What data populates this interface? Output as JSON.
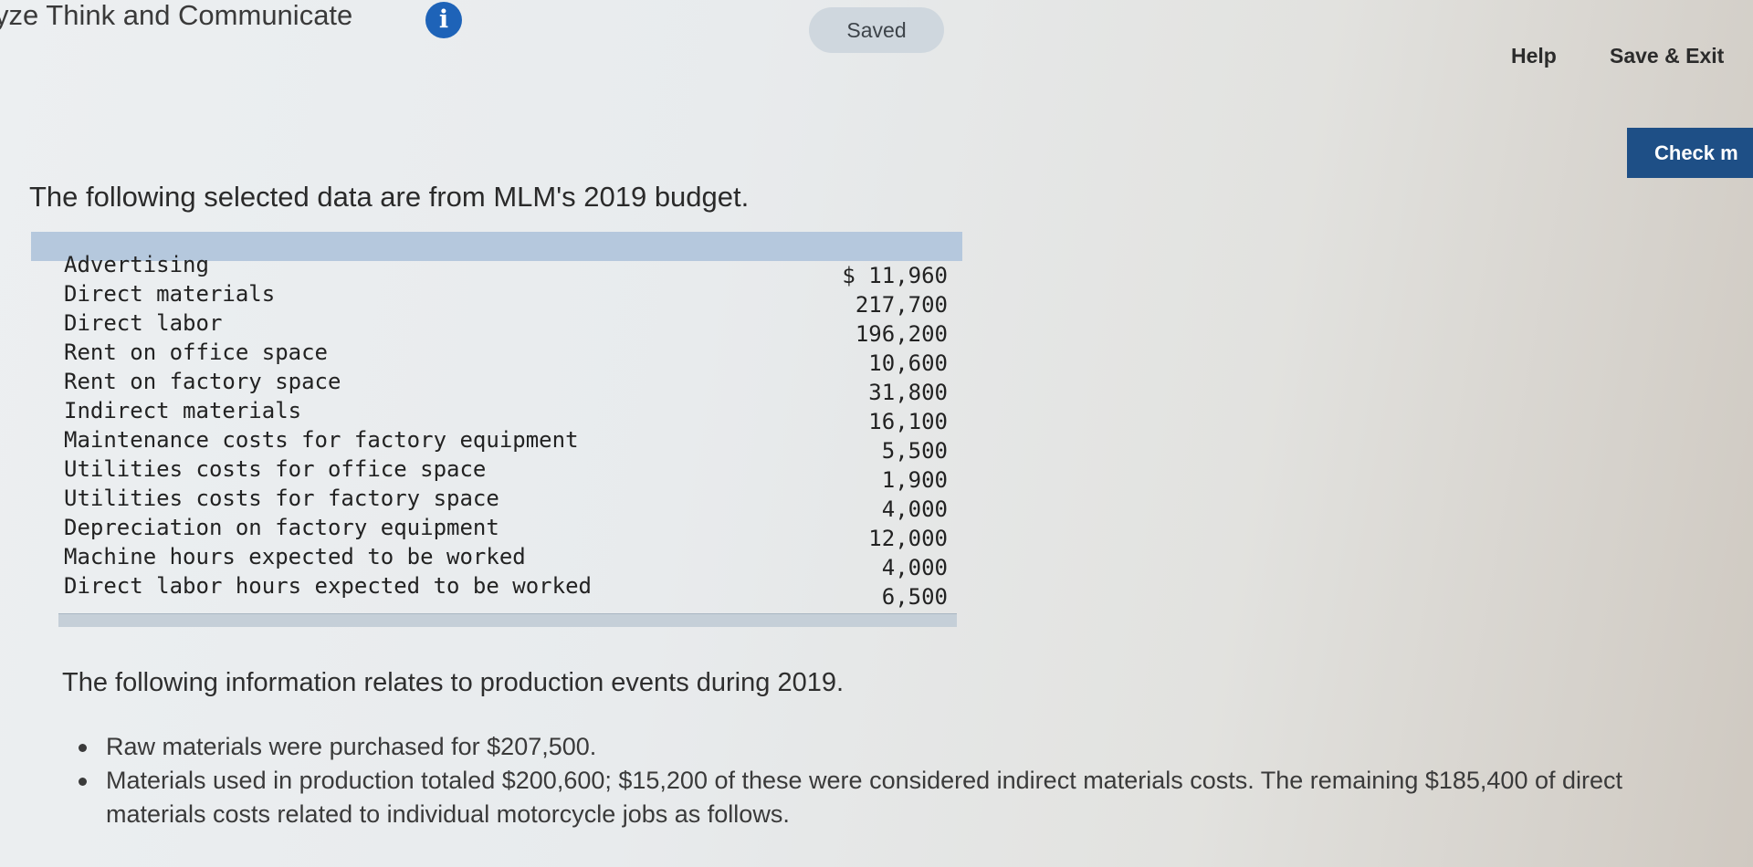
{
  "header": {
    "title": "yze Think and Communicate",
    "info_icon": "info-icon",
    "info_glyph": "i",
    "saved_label": "Saved",
    "help_label": "Help",
    "save_exit_label": "Save & Exit",
    "check_label": "Check m"
  },
  "main": {
    "intro": "The following selected data are from MLM's 2019 budget.",
    "table": {
      "rows": [
        {
          "label": "Advertising",
          "value": "$ 11,960"
        },
        {
          "label": "Direct materials",
          "value": "217,700"
        },
        {
          "label": "Direct labor",
          "value": "196,200"
        },
        {
          "label": "Rent on office space",
          "value": "10,600"
        },
        {
          "label": "Rent on factory space",
          "value": "31,800"
        },
        {
          "label": "Indirect materials",
          "value": "16,100"
        },
        {
          "label": "Maintenance costs for factory equipment",
          "value": "5,500"
        },
        {
          "label": "Utilities costs for office space",
          "value": "1,900"
        },
        {
          "label": "Utilities costs for factory space",
          "value": "4,000"
        },
        {
          "label": "Depreciation on factory equipment",
          "value": "12,000"
        },
        {
          "label": "Machine hours expected to be worked",
          "value": "4,000"
        },
        {
          "label": "Direct labor hours expected to be worked",
          "value": "6,500"
        }
      ]
    },
    "info": "The following information relates to production events during 2019.",
    "events": [
      "Raw materials were purchased for $207,500.",
      "Materials used in production totaled $200,600; $15,200 of these were considered indirect materials costs. The remaining $185,400 of direct materials costs related to individual motorcycle jobs as follows."
    ]
  },
  "colors": {
    "accent": "#1e4f86",
    "info_icon": "#1e63b8",
    "table_header": "#b5c8dd"
  }
}
